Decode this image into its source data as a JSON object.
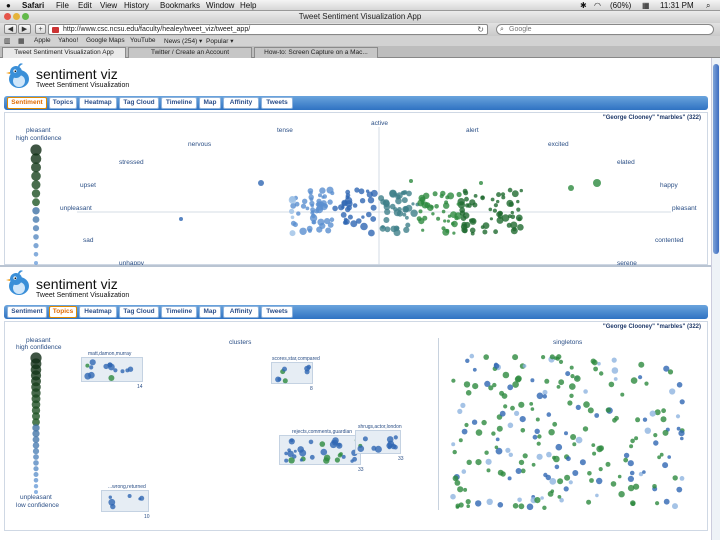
{
  "menubar": {
    "app_name": "Safari",
    "items": [
      "File",
      "Edit",
      "View",
      "History",
      "Bookmarks",
      "Window",
      "Help"
    ],
    "battery": "(60%)",
    "clock": "11:31 PM"
  },
  "window": {
    "title": "Tweet Sentiment Visualization App"
  },
  "toolbar": {
    "back": "◀",
    "forward": "▶",
    "add": "+",
    "url": "http://www.csc.ncsu.edu/faculty/healey/tweet_viz/tweet_app/",
    "search_placeholder": "Google"
  },
  "bookmarks": [
    "Apple",
    "Yahoo!",
    "Google Maps",
    "YouTube",
    "News (254) ▾",
    "Popular ▾"
  ],
  "browser_tabs": [
    {
      "label": "Tweet Sentiment Visualization App"
    },
    {
      "label": "Twitter / Create an Account"
    },
    {
      "label": "How-to: Screen Capture on a Mac..."
    }
  ],
  "app": {
    "title": "sentiment viz",
    "subtitle": "Tweet Sentiment Visualization",
    "tabs": [
      "Sentiment",
      "Topics",
      "Heatmap",
      "Tag Cloud",
      "Timeline",
      "Map",
      "Affinity",
      "Tweets"
    ],
    "query": "\"George Clooney\" \"marbles\" (322)"
  },
  "top_panel": {
    "active_tab": "Sentiment",
    "legend_top": [
      "pleasant",
      "high confidence"
    ],
    "emotions": {
      "active": "active",
      "tense": "tense",
      "alert": "alert",
      "nervous": "nervous",
      "excited": "excited",
      "stressed": "stressed",
      "elated": "elated",
      "upset": "upset",
      "happy": "happy",
      "unpleasant": "unpleasant",
      "pleasant": "pleasant",
      "sad": "sad",
      "contented": "contented",
      "unhappy": "unhappy",
      "serene": "serene"
    },
    "colors": {
      "blue": "#2f66b3",
      "green": "#2d8a3e",
      "legend_dark": "#0f2a14"
    }
  },
  "bottom_panel": {
    "active_tab": "Topics",
    "legend_top": [
      "pleasant",
      "high confidence"
    ],
    "legend_bottom": [
      "unpleasant",
      "low confidence"
    ],
    "clusters_label": "clusters",
    "singletons_label": "singletons",
    "clusters": [
      {
        "title": "matt,damon,murray",
        "count": "14"
      },
      {
        "title": "scores,star,compared",
        "count": "8"
      },
      {
        "title": "rejects,comments,guardian",
        "count": "33"
      },
      {
        "title": "shrugs,actor,london",
        "count": "33"
      },
      {
        "title": "...wrong,returned",
        "count": "10"
      }
    ]
  }
}
